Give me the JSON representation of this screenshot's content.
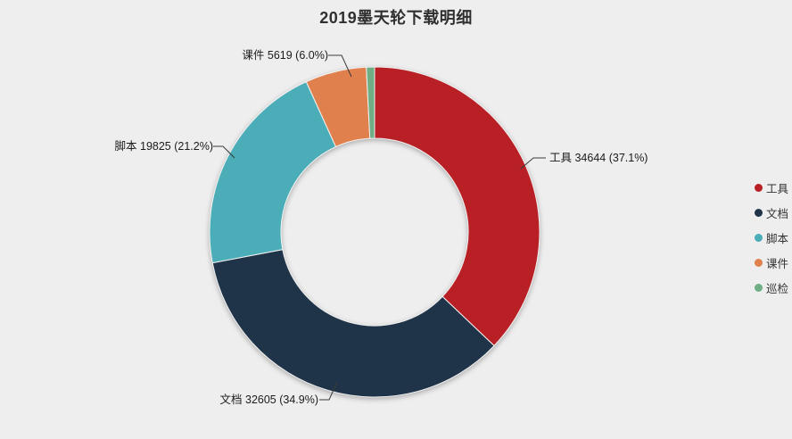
{
  "title": "2019墨天轮下载明细",
  "chart_data": {
    "type": "pie",
    "subtype": "donut",
    "title": "2019墨天轮下载明细",
    "categories": [
      "工具",
      "文档",
      "脚本",
      "课件",
      "巡检"
    ],
    "values": [
      34644,
      32605,
      19825,
      5619,
      null
    ],
    "percents": [
      37.1,
      34.9,
      21.2,
      6.0,
      0.8
    ],
    "colors": [
      "#b92026",
      "#1f3448",
      "#4aadb8",
      "#e0804d",
      "#6fae84"
    ],
    "labels": [
      "工具 34644 (37.1%)",
      "文档 32605 (34.9%)",
      "脚本 19825 (21.2%)",
      "课件 5619 (6.0%)"
    ],
    "legend_position": "right",
    "background": "#eeeeef",
    "start_angle": "top",
    "direction": "clockwise"
  },
  "legend": {
    "items": [
      {
        "label": "工具",
        "color": "#b92026"
      },
      {
        "label": "文档",
        "color": "#1f3448"
      },
      {
        "label": "脚本",
        "color": "#4aadb8"
      },
      {
        "label": "课件",
        "color": "#e0804d"
      },
      {
        "label": "巡检",
        "color": "#6fae84"
      }
    ]
  }
}
